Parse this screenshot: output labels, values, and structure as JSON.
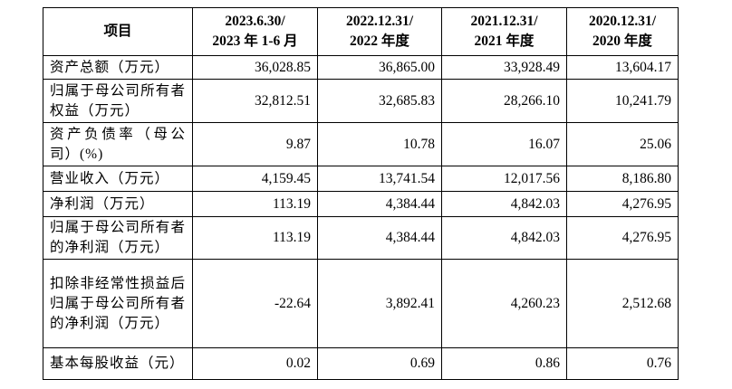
{
  "table": {
    "header": [
      [
        "项目"
      ],
      [
        "2023.6.30/",
        "2023 年 1-6 月"
      ],
      [
        "2022.12.31/",
        "2022 年度"
      ],
      [
        "2021.12.31/",
        "2021 年度"
      ],
      [
        "2020.12.31/",
        "2020 年度"
      ]
    ],
    "rows": [
      [
        "资产总额（万元）",
        "36,028.85",
        "36,865.00",
        "33,928.49",
        "13,604.17"
      ],
      [
        "归属于母公司所有者权益（万元）",
        "32,812.51",
        "32,685.83",
        "28,266.10",
        "10,241.79"
      ],
      [
        "资产负债率（母公司）(%)",
        "9.87",
        "10.78",
        "16.07",
        "25.06"
      ],
      [
        "营业收入（万元）",
        "4,159.45",
        "13,741.54",
        "12,017.56",
        "8,186.80"
      ],
      [
        "净利润（万元）",
        "113.19",
        "4,384.44",
        "4,842.03",
        "4,276.95"
      ],
      [
        "归属于母公司所有者的净利润（万元）",
        "113.19",
        "4,384.44",
        "4,842.03",
        "4,276.95"
      ],
      [
        "扣除非经常性损益后归属于母公司所有者的净利润（万元）",
        "-22.64",
        "3,892.41",
        "4,260.23",
        "2,512.68"
      ],
      [
        "基本每股收益（元）",
        "0.02",
        "0.69",
        "0.86",
        "0.76"
      ]
    ]
  }
}
